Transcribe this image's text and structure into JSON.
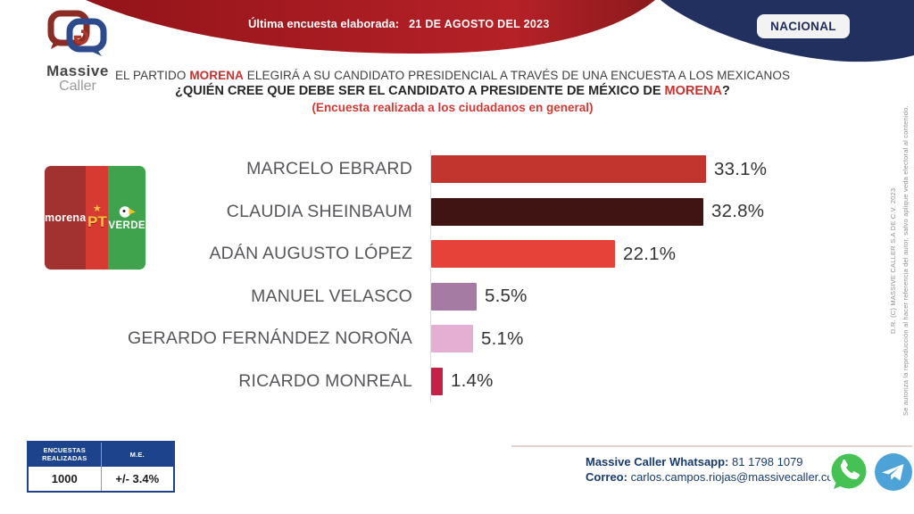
{
  "brand": {
    "name_top": "Massive",
    "name_bottom": "Caller"
  },
  "top_banner": {
    "label": "Última encuesta elaborada:",
    "date": "21 DE AGOSTO DEL 2023"
  },
  "region_badge": {
    "label": "NACIONAL"
  },
  "headline": {
    "line1_pre": "EL PARTIDO ",
    "line1_brand": "MORENA",
    "line1_post": " ELEGIRÁ A SU CANDIDATO PRESIDENCIAL A TRAVÉS DE UNA ENCUESTA A LOS MEXICANOS",
    "line2_pre": "¿QUIÉN CREE QUE DEBE SER EL CANDIDATO A PRESIDENTE DE MÉXICO DE ",
    "line2_brand": "MORENA",
    "line2_post": "?",
    "line3": "(Encuesta realizada a los ciudadanos en general)"
  },
  "parties": {
    "morena": "morena",
    "pt_star": "★",
    "pt": "PT",
    "verde": "VERDE"
  },
  "chart_data": {
    "type": "bar",
    "orientation": "horizontal",
    "title": "¿QUIÉN CREE QUE DEBE SER EL CANDIDATO A PRESIDENTE DE MÉXICO DE MORENA?",
    "subtitle": "(Encuesta realizada a los ciudadanos en general)",
    "categories": [
      "MARCELO EBRARD",
      "CLAUDIA SHEINBAUM",
      "ADÁN AUGUSTO LÓPEZ",
      "MANUEL VELASCO",
      "GERARDO FERNÁNDEZ NOROÑA",
      "RICARDO MONREAL"
    ],
    "values": [
      33.1,
      32.8,
      22.1,
      5.5,
      5.1,
      1.4
    ],
    "value_labels": [
      "33.1%",
      "32.8%",
      "22.1%",
      "5.5%",
      "5.1%",
      "1.4%"
    ],
    "colors": [
      "#c2352f",
      "#3f1412",
      "#e6423a",
      "#a57ba3",
      "#e5aed3",
      "#c32148"
    ],
    "xlim": [
      0,
      35
    ],
    "grid": false,
    "legend": false
  },
  "stats_table": {
    "headers": [
      "ENCUESTAS REALIZADAS",
      "M.E."
    ],
    "rows": [
      [
        "1000",
        "+/- 3.4%"
      ]
    ]
  },
  "contact": {
    "whatsapp_label": "Massive Caller Whatsapp:",
    "whatsapp_value": "81 1798 1079",
    "email_label": "Correo:",
    "email_value": "carlos.campos.riojas@massivecaller.com"
  },
  "copyright": {
    "line1": "D.R. (C) MASSIVE CALLER S.A DE C.V. 2023",
    "line2": "Se autoriza la reproducción al hacer referencia del autor, salvo aplique veda electoral al contenido."
  },
  "colors": {
    "banner_red_dark": "#931419",
    "banner_red": "#b52127",
    "corner_navy": "#22305f",
    "table_header_blue": "#1c438c",
    "accent_red": "#c8322f",
    "whatsapp_green": "#46c254",
    "telegram_blue": "#4da3d8"
  }
}
